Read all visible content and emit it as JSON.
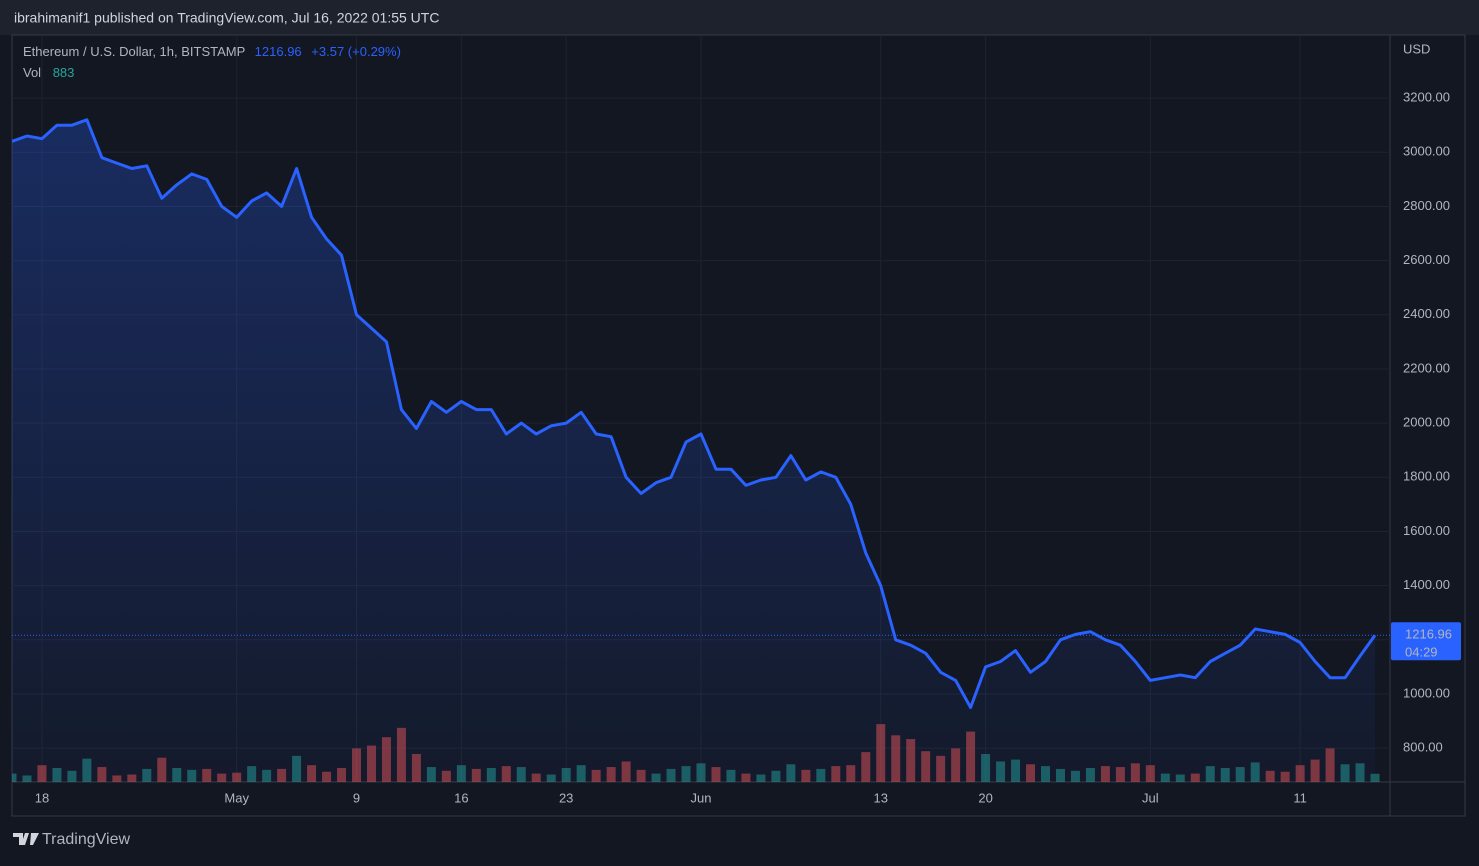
{
  "chart_data": {
    "type": "line",
    "header": "ibrahimanif1 published on TradingView.com, Jul 16, 2022 01:55 UTC",
    "symbol": "Ethereum / U.S. Dollar, 1h, BITSTAMP",
    "last_price": "1216.96",
    "change": "+3.57 (+0.29%)",
    "volume_label": "Vol",
    "volume_last": "883",
    "currency": "USD",
    "countdown": "04:29",
    "brand": "TradingView",
    "x": [
      "2022-04-16",
      "2022-04-17",
      "2022-04-18",
      "2022-04-19",
      "2022-04-20",
      "2022-04-21",
      "2022-04-22",
      "2022-04-23",
      "2022-04-24",
      "2022-04-25",
      "2022-04-26",
      "2022-04-27",
      "2022-04-28",
      "2022-04-29",
      "2022-04-30",
      "2022-05-01",
      "2022-05-02",
      "2022-05-03",
      "2022-05-04",
      "2022-05-05",
      "2022-05-06",
      "2022-05-07",
      "2022-05-08",
      "2022-05-09",
      "2022-05-10",
      "2022-05-11",
      "2022-05-12",
      "2022-05-13",
      "2022-05-14",
      "2022-05-15",
      "2022-05-16",
      "2022-05-17",
      "2022-05-18",
      "2022-05-19",
      "2022-05-20",
      "2022-05-21",
      "2022-05-22",
      "2022-05-23",
      "2022-05-24",
      "2022-05-25",
      "2022-05-26",
      "2022-05-27",
      "2022-05-28",
      "2022-05-29",
      "2022-05-30",
      "2022-05-31",
      "2022-06-01",
      "2022-06-02",
      "2022-06-03",
      "2022-06-04",
      "2022-06-05",
      "2022-06-06",
      "2022-06-07",
      "2022-06-08",
      "2022-06-09",
      "2022-06-10",
      "2022-06-11",
      "2022-06-12",
      "2022-06-13",
      "2022-06-14",
      "2022-06-15",
      "2022-06-16",
      "2022-06-17",
      "2022-06-18",
      "2022-06-19",
      "2022-06-20",
      "2022-06-21",
      "2022-06-22",
      "2022-06-23",
      "2022-06-24",
      "2022-06-25",
      "2022-06-26",
      "2022-06-27",
      "2022-06-28",
      "2022-06-29",
      "2022-06-30",
      "2022-07-01",
      "2022-07-02",
      "2022-07-03",
      "2022-07-04",
      "2022-07-05",
      "2022-07-06",
      "2022-07-07",
      "2022-07-08",
      "2022-07-09",
      "2022-07-10",
      "2022-07-11",
      "2022-07-12",
      "2022-07-13",
      "2022-07-14",
      "2022-07-15",
      "2022-07-16"
    ],
    "series": [
      {
        "name": "Ethereum / U.S. Dollar",
        "color": "#2962ff",
        "values": [
          3040,
          3060,
          3050,
          3100,
          3100,
          3120,
          2980,
          2960,
          2940,
          2950,
          2830,
          2880,
          2920,
          2900,
          2800,
          2760,
          2820,
          2850,
          2800,
          2940,
          2760,
          2680,
          2620,
          2400,
          2350,
          2300,
          2050,
          1980,
          2080,
          2040,
          2080,
          2050,
          2050,
          1960,
          2000,
          1960,
          1990,
          2000,
          2040,
          1960,
          1950,
          1800,
          1740,
          1780,
          1800,
          1930,
          1960,
          1830,
          1830,
          1770,
          1790,
          1800,
          1880,
          1790,
          1820,
          1800,
          1700,
          1520,
          1400,
          1200,
          1180,
          1150,
          1080,
          1050,
          950,
          1100,
          1120,
          1160,
          1080,
          1120,
          1200,
          1220,
          1230,
          1200,
          1180,
          1120,
          1050,
          1060,
          1070,
          1060,
          1120,
          1150,
          1180,
          1240,
          1230,
          1220,
          1190,
          1120,
          1060,
          1060,
          1140,
          1216.96
        ]
      },
      {
        "name": "Vol",
        "axis": "y2",
        "up_color": "#26a69a",
        "down_color": "#ef5350",
        "values": [
          900,
          700,
          1800,
          1500,
          1200,
          2500,
          1600,
          700,
          800,
          1400,
          2600,
          1500,
          1300,
          1400,
          900,
          1000,
          1700,
          1300,
          1400,
          2800,
          1800,
          1100,
          1500,
          3600,
          3900,
          4800,
          5800,
          3000,
          1600,
          1200,
          1800,
          1400,
          1500,
          1700,
          1600,
          900,
          800,
          1500,
          1800,
          1300,
          1600,
          2200,
          1300,
          900,
          1400,
          1700,
          2000,
          1600,
          1300,
          900,
          800,
          1200,
          1900,
          1300,
          1400,
          1700,
          1800,
          3200,
          6200,
          5000,
          4600,
          3300,
          2800,
          3600,
          5400,
          3000,
          2200,
          2400,
          1900,
          1700,
          1400,
          1200,
          1500,
          1700,
          1600,
          2000,
          1800,
          900,
          800,
          900,
          1700,
          1500,
          1600,
          2100,
          1200,
          1100,
          1800,
          2400,
          3600,
          1900,
          2000,
          883
        ]
      }
    ],
    "xlim": [
      "2022-04-16",
      "2022-07-17"
    ],
    "xticks": [
      {
        "value": "2022-04-18",
        "label": "18"
      },
      {
        "value": "2022-05-01",
        "label": "May"
      },
      {
        "value": "2022-05-09",
        "label": "9"
      },
      {
        "value": "2022-05-16",
        "label": "16"
      },
      {
        "value": "2022-05-23",
        "label": "23"
      },
      {
        "value": "2022-06-01",
        "label": "Jun"
      },
      {
        "value": "2022-06-13",
        "label": "13"
      },
      {
        "value": "2022-06-20",
        "label": "20"
      },
      {
        "value": "2022-07-01",
        "label": "Jul"
      },
      {
        "value": "2022-07-11",
        "label": "11"
      }
    ],
    "ylim": [
      675,
      3433
    ],
    "yticks": [
      {
        "value": 800,
        "label": "800.00"
      },
      {
        "value": 1000,
        "label": "1000.00"
      },
      {
        "value": 1200,
        "label": "1200.00"
      },
      {
        "value": 1400,
        "label": "1400.00"
      },
      {
        "value": 1600,
        "label": "1600.00"
      },
      {
        "value": 1800,
        "label": "1800.00"
      },
      {
        "value": 2000,
        "label": "2000.00"
      },
      {
        "value": 2200,
        "label": "2200.00"
      },
      {
        "value": 2400,
        "label": "2400.00"
      },
      {
        "value": 2600,
        "label": "2600.00"
      },
      {
        "value": 2800,
        "label": "2800.00"
      },
      {
        "value": 3000,
        "label": "3000.00"
      },
      {
        "value": 3200,
        "label": "3200.00"
      }
    ],
    "y2lim": [
      0,
      20000
    ],
    "grid": true
  }
}
